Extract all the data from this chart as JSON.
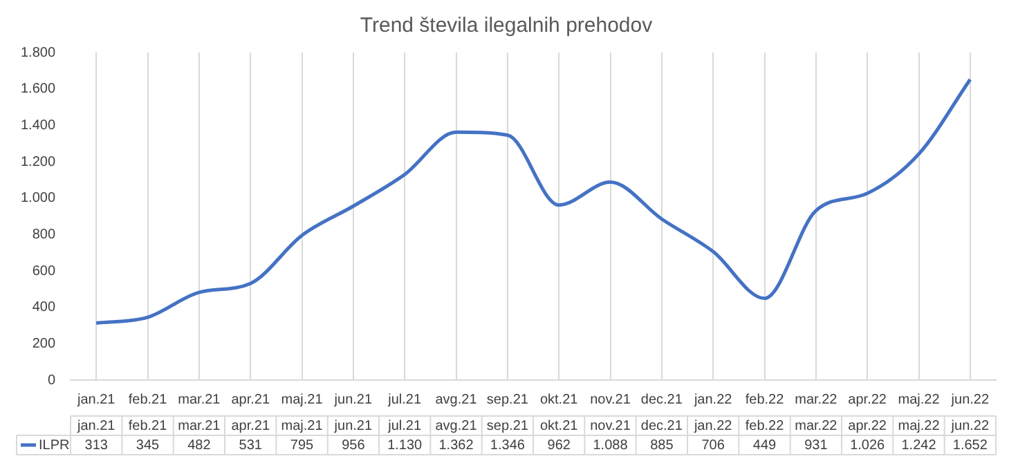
{
  "chart_data": {
    "type": "line",
    "title": "Trend števila ilegalnih prehodov",
    "categories": [
      "jan.21",
      "feb.21",
      "mar.21",
      "apr.21",
      "maj.21",
      "jun.21",
      "jul.21",
      "avg.21",
      "sep.21",
      "okt.21",
      "nov.21",
      "dec.21",
      "jan.22",
      "feb.22",
      "mar.22",
      "apr.22",
      "maj.22",
      "jun.22"
    ],
    "series": [
      {
        "name": "ILPR",
        "color": "#4472c4",
        "values": [
          313,
          345,
          482,
          531,
          795,
          956,
          1130,
          1362,
          1346,
          962,
          1088,
          885,
          706,
          449,
          931,
          1026,
          1242,
          1652
        ],
        "value_labels": [
          "313",
          "345",
          "482",
          "531",
          "795",
          "956",
          "1.130",
          "1.362",
          "1.346",
          "962",
          "1.088",
          "885",
          "706",
          "449",
          "931",
          "1.026",
          "1.242",
          "1.652"
        ]
      }
    ],
    "ylim": [
      0,
      1800
    ],
    "yticks": [
      0,
      {
        "value": 200,
        "label": "200"
      },
      {
        "value": 400,
        "label": "400"
      },
      {
        "value": 600,
        "label": "600"
      },
      {
        "value": 800,
        "label": "800"
      },
      {
        "value": 1000,
        "label": "1.000"
      },
      {
        "value": 1200,
        "label": "1.200"
      },
      {
        "value": 1400,
        "label": "1.400"
      },
      {
        "value": 1600,
        "label": "1.600"
      },
      {
        "value": 1800,
        "label": "1.800"
      }
    ],
    "grid": "x",
    "legend": "bottom left",
    "marker": "none",
    "line_style": "solid"
  }
}
